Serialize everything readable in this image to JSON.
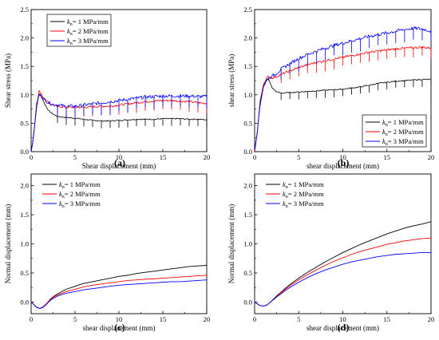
{
  "figure": {
    "colors": {
      "k1": "#000000",
      "k2": "#ff0000",
      "k3": "#0000ff"
    }
  },
  "chart_data": [
    {
      "panel": "(a)",
      "type": "line",
      "xlabel": "Shear displacement (mm)",
      "ylabel": "Shear stress (MPa)",
      "xlim": [
        0,
        20
      ],
      "ylim": [
        0,
        2.5
      ],
      "xticks": [
        0,
        5,
        10,
        15,
        20
      ],
      "yticks": [
        0.0,
        0.5,
        1.0,
        1.5,
        2.0,
        2.5
      ],
      "ytick_labels": [
        "0.0",
        "0.5",
        "1.0",
        "1.5",
        "2.0",
        "2.5"
      ],
      "legend_position": "top-left",
      "grid": false,
      "series": [
        {
          "key": "k1",
          "legend_k": "k",
          "legend_sub": "n",
          "legend_rest": "= 1 MPa/mm",
          "x": [
            0,
            0.3,
            0.6,
            0.9,
            1.2,
            1.5,
            2,
            2.5,
            3,
            4,
            5,
            6,
            7,
            8,
            9,
            10,
            11,
            12,
            13,
            14,
            15,
            16,
            17,
            18,
            19,
            20
          ],
          "values": [
            0,
            0.3,
            0.75,
            1.02,
            0.98,
            0.85,
            0.72,
            0.66,
            0.62,
            0.6,
            0.59,
            0.57,
            0.55,
            0.54,
            0.54,
            0.55,
            0.56,
            0.57,
            0.57,
            0.57,
            0.58,
            0.58,
            0.58,
            0.57,
            0.57,
            0.56
          ]
        },
        {
          "key": "k2",
          "legend_k": "k",
          "legend_sub": "n",
          "legend_rest": "= 2 MPa/mm",
          "x": [
            0,
            0.3,
            0.6,
            0.9,
            1.2,
            1.5,
            2,
            2.5,
            3,
            4,
            5,
            6,
            7,
            8,
            9,
            10,
            11,
            12,
            13,
            14,
            15,
            16,
            17,
            18,
            19,
            20
          ],
          "values": [
            0,
            0.3,
            0.8,
            1.07,
            1.0,
            0.93,
            0.86,
            0.82,
            0.8,
            0.78,
            0.78,
            0.78,
            0.79,
            0.8,
            0.8,
            0.82,
            0.84,
            0.86,
            0.88,
            0.89,
            0.9,
            0.9,
            0.89,
            0.88,
            0.86,
            0.85
          ]
        },
        {
          "key": "k3",
          "legend_k": "k",
          "legend_sub": "n",
          "legend_rest": "= 3 MPa/mm",
          "x": [
            0,
            0.3,
            0.6,
            0.9,
            1.2,
            1.5,
            2,
            2.5,
            3,
            4,
            5,
            6,
            7,
            8,
            9,
            10,
            11,
            12,
            13,
            14,
            15,
            16,
            17,
            18,
            19,
            20
          ],
          "values": [
            0,
            0.3,
            0.82,
            1.0,
            0.97,
            0.92,
            0.86,
            0.83,
            0.82,
            0.8,
            0.8,
            0.82,
            0.84,
            0.86,
            0.88,
            0.9,
            0.92,
            0.94,
            0.96,
            0.97,
            0.98,
            0.98,
            0.98,
            0.98,
            0.97,
            0.97
          ]
        }
      ]
    },
    {
      "panel": "(b)",
      "type": "line",
      "xlabel": "shear displacement (mm)",
      "ylabel": "shear stress (MPa)",
      "xlim": [
        0,
        20
      ],
      "ylim": [
        0,
        2.5
      ],
      "xticks": [
        0,
        5,
        10,
        15,
        20
      ],
      "yticks": [
        0.0,
        0.5,
        1.0,
        1.5,
        2.0,
        2.5
      ],
      "ytick_labels": [
        "0.0",
        "0.5",
        "1.0",
        "1.5",
        "2.0",
        "2.5"
      ],
      "legend_position": "bottom-right",
      "grid": false,
      "series": [
        {
          "key": "k1",
          "legend_k": "k",
          "legend_sub": "n",
          "legend_rest": "= 1 MPa/mm",
          "x": [
            0,
            0.3,
            0.6,
            1,
            1.5,
            2,
            2.5,
            3,
            4,
            5,
            6,
            7,
            8,
            9,
            10,
            11,
            12,
            13,
            14,
            15,
            16,
            17,
            18,
            19,
            20
          ],
          "values": [
            0,
            0.35,
            0.8,
            1.15,
            1.3,
            1.12,
            1.05,
            1.03,
            1.04,
            1.05,
            1.06,
            1.07,
            1.08,
            1.09,
            1.1,
            1.12,
            1.14,
            1.17,
            1.2,
            1.22,
            1.24,
            1.25,
            1.26,
            1.27,
            1.27
          ]
        },
        {
          "key": "k2",
          "legend_k": "k",
          "legend_sub": "n",
          "legend_rest": "= 2 MPa/mm",
          "x": [
            0,
            0.3,
            0.6,
            1,
            1.5,
            2,
            2.5,
            3,
            4,
            5,
            6,
            7,
            8,
            9,
            10,
            11,
            12,
            13,
            14,
            15,
            16,
            17,
            18,
            19,
            20
          ],
          "values": [
            0,
            0.35,
            0.85,
            1.2,
            1.32,
            1.3,
            1.32,
            1.36,
            1.42,
            1.48,
            1.53,
            1.57,
            1.6,
            1.63,
            1.66,
            1.69,
            1.72,
            1.75,
            1.77,
            1.79,
            1.81,
            1.82,
            1.83,
            1.84,
            1.82
          ]
        },
        {
          "key": "k3",
          "legend_k": "k",
          "legend_sub": "n",
          "legend_rest": "= 3 MPa/mm",
          "x": [
            0,
            0.3,
            0.6,
            1,
            1.5,
            2,
            2.5,
            3,
            4,
            5,
            6,
            7,
            8,
            9,
            10,
            11,
            12,
            13,
            14,
            15,
            16,
            17,
            18,
            19,
            20
          ],
          "values": [
            0,
            0.35,
            0.85,
            1.15,
            1.28,
            1.33,
            1.38,
            1.45,
            1.55,
            1.64,
            1.71,
            1.77,
            1.82,
            1.87,
            1.91,
            1.95,
            1.99,
            2.03,
            2.06,
            2.09,
            2.12,
            2.15,
            2.17,
            2.16,
            2.12
          ]
        }
      ]
    },
    {
      "panel": "(c)",
      "type": "line",
      "xlabel": "shear displacement (mm)",
      "ylabel": "Normal displacement (mm)",
      "xlim": [
        0,
        20
      ],
      "ylim": [
        -0.2,
        2.2
      ],
      "xticks": [
        0,
        5,
        10,
        15,
        20
      ],
      "yticks": [
        0.0,
        0.5,
        1.0,
        1.5,
        2.0
      ],
      "ytick_labels": [
        "0.0",
        "0.5",
        "1.0",
        "1.5",
        "2.0"
      ],
      "legend_position": "top-left",
      "grid": false,
      "series": [
        {
          "key": "k1",
          "legend_k": "k",
          "legend_sub": "n",
          "legend_rest": "= 1 MPa/mm",
          "x": [
            0,
            0.3,
            0.6,
            1,
            1.4,
            1.8,
            2.2,
            2.6,
            3,
            3.5,
            4,
            5,
            6,
            7,
            8,
            9,
            10,
            11,
            12,
            13,
            14,
            15,
            16,
            17,
            18,
            19,
            20
          ],
          "values": [
            0,
            -0.04,
            -0.09,
            -0.11,
            -0.08,
            -0.02,
            0.05,
            0.1,
            0.14,
            0.18,
            0.22,
            0.27,
            0.32,
            0.35,
            0.38,
            0.41,
            0.44,
            0.46,
            0.49,
            0.51,
            0.53,
            0.55,
            0.57,
            0.59,
            0.61,
            0.62,
            0.63
          ]
        },
        {
          "key": "k2",
          "legend_k": "k",
          "legend_sub": "n",
          "legend_rest": "= 2 MPa/mm",
          "x": [
            0,
            0.3,
            0.6,
            1,
            1.4,
            1.8,
            2.2,
            2.6,
            3,
            3.5,
            4,
            5,
            6,
            7,
            8,
            9,
            10,
            11,
            12,
            13,
            14,
            15,
            16,
            17,
            18,
            19,
            20
          ],
          "values": [
            0,
            -0.04,
            -0.09,
            -0.11,
            -0.08,
            -0.02,
            0.04,
            0.09,
            0.12,
            0.15,
            0.18,
            0.22,
            0.26,
            0.29,
            0.31,
            0.33,
            0.35,
            0.37,
            0.38,
            0.39,
            0.4,
            0.41,
            0.42,
            0.43,
            0.44,
            0.45,
            0.46
          ]
        },
        {
          "key": "k3",
          "legend_k": "k",
          "legend_sub": "n",
          "legend_rest": "= 3 MPa/mm",
          "x": [
            0,
            0.3,
            0.6,
            1,
            1.4,
            1.8,
            2.2,
            2.6,
            3,
            3.5,
            4,
            5,
            6,
            7,
            8,
            9,
            10,
            11,
            12,
            13,
            14,
            15,
            16,
            17,
            18,
            19,
            20
          ],
          "values": [
            0,
            -0.04,
            -0.09,
            -0.11,
            -0.09,
            -0.03,
            0.03,
            0.07,
            0.1,
            0.13,
            0.15,
            0.18,
            0.21,
            0.23,
            0.25,
            0.27,
            0.29,
            0.3,
            0.31,
            0.32,
            0.33,
            0.34,
            0.35,
            0.35,
            0.36,
            0.37,
            0.38
          ]
        }
      ]
    },
    {
      "panel": "(d)",
      "type": "line",
      "xlabel": "shear displacement (mm)",
      "ylabel": "Normal displacement (mm)",
      "xlim": [
        0,
        20
      ],
      "ylim": [
        -0.2,
        2.2
      ],
      "xticks": [
        0,
        5,
        10,
        15,
        20
      ],
      "yticks": [
        0.0,
        0.5,
        1.0,
        1.5,
        2.0
      ],
      "ytick_labels": [
        "0.0",
        "0.5",
        "1.0",
        "1.5",
        "2.0"
      ],
      "legend_position": "top-left",
      "grid": false,
      "series": [
        {
          "key": "k1",
          "legend_k": "k",
          "legend_sub": "n",
          "legend_rest": "= 1 MPa/mm",
          "x": [
            0,
            0.3,
            0.6,
            1,
            1.4,
            1.8,
            2.2,
            2.6,
            3,
            3.5,
            4,
            5,
            6,
            7,
            8,
            9,
            10,
            11,
            12,
            13,
            14,
            15,
            16,
            17,
            18,
            19,
            20
          ],
          "values": [
            0,
            -0.03,
            -0.06,
            -0.07,
            -0.05,
            0.0,
            0.06,
            0.12,
            0.17,
            0.24,
            0.3,
            0.41,
            0.51,
            0.6,
            0.69,
            0.77,
            0.85,
            0.92,
            0.99,
            1.05,
            1.11,
            1.17,
            1.22,
            1.27,
            1.31,
            1.34,
            1.38
          ]
        },
        {
          "key": "k2",
          "legend_k": "k",
          "legend_sub": "n",
          "legend_rest": "= 2 MPa/mm",
          "x": [
            0,
            0.3,
            0.6,
            1,
            1.4,
            1.8,
            2.2,
            2.6,
            3,
            3.5,
            4,
            5,
            6,
            7,
            8,
            9,
            10,
            11,
            12,
            13,
            14,
            15,
            16,
            17,
            18,
            19,
            20
          ],
          "values": [
            0,
            -0.03,
            -0.06,
            -0.07,
            -0.05,
            0.0,
            0.05,
            0.11,
            0.16,
            0.22,
            0.28,
            0.38,
            0.47,
            0.55,
            0.63,
            0.7,
            0.76,
            0.82,
            0.87,
            0.91,
            0.95,
            0.99,
            1.02,
            1.05,
            1.07,
            1.09,
            1.1
          ]
        },
        {
          "key": "k3",
          "legend_k": "k",
          "legend_sub": "n",
          "legend_rest": "= 3 MPa/mm",
          "x": [
            0,
            0.3,
            0.6,
            1,
            1.4,
            1.8,
            2.2,
            2.6,
            3,
            3.5,
            4,
            5,
            6,
            7,
            8,
            9,
            10,
            11,
            12,
            13,
            14,
            15,
            16,
            17,
            18,
            19,
            20
          ],
          "values": [
            0,
            -0.03,
            -0.06,
            -0.07,
            -0.05,
            0.0,
            0.05,
            0.1,
            0.14,
            0.2,
            0.25,
            0.34,
            0.42,
            0.49,
            0.55,
            0.6,
            0.65,
            0.69,
            0.72,
            0.75,
            0.78,
            0.8,
            0.82,
            0.83,
            0.84,
            0.85,
            0.85
          ]
        }
      ]
    }
  ]
}
